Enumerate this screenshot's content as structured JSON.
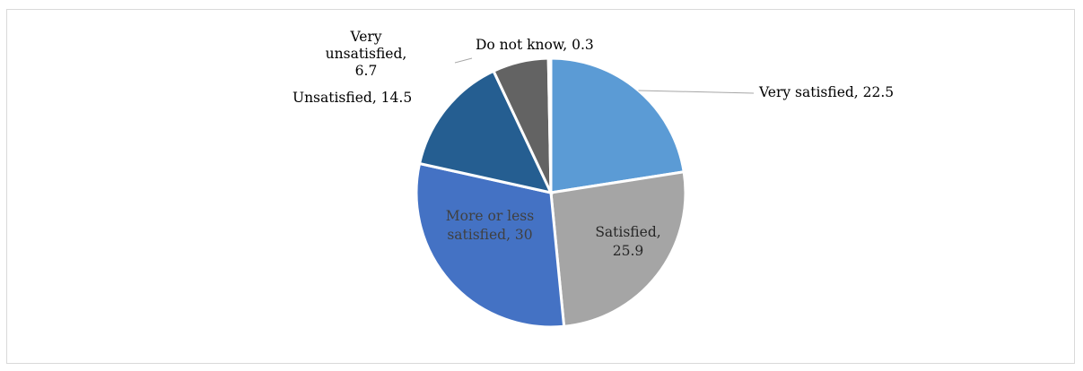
{
  "chart_data": {
    "type": "pie",
    "title": "",
    "slices": [
      {
        "label": "Very satisfied",
        "value": 22.5,
        "color": "#5b9bd5",
        "text": "Very satisfied, 22.5",
        "lines": [
          "Very satisfied, 22.5"
        ],
        "name_key": "very-satisfied"
      },
      {
        "label": "Satisfied",
        "value": 25.9,
        "color": "#a5a5a5",
        "text": "Satisfied, 25.9",
        "lines": [
          "Satisfied,",
          "25.9"
        ],
        "name_key": "satisfied"
      },
      {
        "label": "More or less satisfied",
        "value": 30,
        "color": "#4472c4",
        "text": "More or less satisfied, 30",
        "lines": [
          "More or less",
          "satisfied, 30"
        ],
        "name_key": "more-or-less-satisfied"
      },
      {
        "label": "Unsatisfied",
        "value": 14.5,
        "color": "#255e91",
        "text": "Unsatisfied, 14.5",
        "lines": [
          "Unsatisfied, 14.5"
        ],
        "name_key": "unsatisfied"
      },
      {
        "label": "Very unsatisfied",
        "value": 6.7,
        "color": "#636363",
        "text": "Very unsatisfied, 6.7",
        "lines": [
          "Very",
          "unsatisfied,",
          "6.7"
        ],
        "name_key": "very-unsatisfied"
      },
      {
        "label": "Do not know",
        "value": 0.3,
        "color": "#997300",
        "text": "Do not know, 0.3",
        "lines": [
          "Do not know, 0.3"
        ],
        "name_key": "do-not-know"
      }
    ],
    "legend": "none",
    "data_labels": "category, value"
  }
}
